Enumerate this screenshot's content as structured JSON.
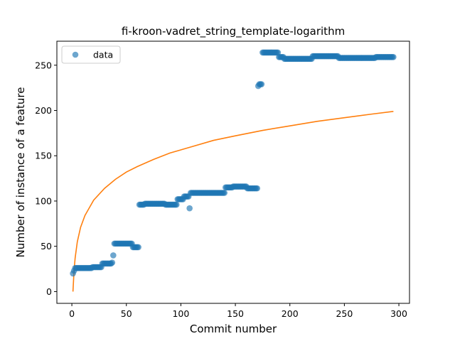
{
  "chart_data": {
    "type": "scatter",
    "title": "fi-kroon-vadret_string_template-logarithm",
    "xlabel": "Commit number",
    "ylabel": "Number of instance of a feature",
    "xlim": [
      -13.75,
      309.75
    ],
    "ylim": [
      -13,
      276.5
    ],
    "xticks": [
      0,
      50,
      100,
      150,
      200,
      250,
      300
    ],
    "yticks": [
      0,
      50,
      100,
      150,
      200,
      250
    ],
    "grid": false,
    "legend": {
      "placement": "top-left",
      "entries": [
        "data"
      ]
    },
    "colors": {
      "data": "#1f77b4",
      "fit": "#ff7f0e"
    },
    "series": [
      {
        "name": "data",
        "kind": "scatter",
        "segments": [
          {
            "from": 1,
            "to": 1,
            "y": 20
          },
          {
            "from": 2,
            "to": 2,
            "y": 23
          },
          {
            "from": 3,
            "to": 18,
            "y": 26
          },
          {
            "from": 19,
            "to": 27,
            "y": 27
          },
          {
            "from": 28,
            "to": 36,
            "y": 31
          },
          {
            "from": 37,
            "to": 37,
            "y": 32
          },
          {
            "from": 38,
            "to": 38,
            "y": 40
          },
          {
            "from": 39,
            "to": 55,
            "y": 53
          },
          {
            "from": 56,
            "to": 61,
            "y": 49
          },
          {
            "from": 62,
            "to": 66,
            "y": 96
          },
          {
            "from": 67,
            "to": 85,
            "y": 97
          },
          {
            "from": 86,
            "to": 96,
            "y": 96
          },
          {
            "from": 97,
            "to": 102,
            "y": 102
          },
          {
            "from": 103,
            "to": 107,
            "y": 105
          },
          {
            "from": 108,
            "to": 108,
            "y": 92
          },
          {
            "from": 109,
            "to": 140,
            "y": 109
          },
          {
            "from": 141,
            "to": 147,
            "y": 115
          },
          {
            "from": 148,
            "to": 160,
            "y": 116
          },
          {
            "from": 161,
            "to": 170,
            "y": 114
          },
          {
            "from": 171,
            "to": 171,
            "y": 227
          },
          {
            "from": 172,
            "to": 174,
            "y": 229
          },
          {
            "from": 175,
            "to": 189,
            "y": 264
          },
          {
            "from": 190,
            "to": 194,
            "y": 259
          },
          {
            "from": 195,
            "to": 220,
            "y": 257
          },
          {
            "from": 221,
            "to": 244,
            "y": 260
          },
          {
            "from": 245,
            "to": 278,
            "y": 258
          },
          {
            "from": 279,
            "to": 295,
            "y": 259
          }
        ]
      },
      {
        "name": "",
        "kind": "line",
        "function": "logarithmic fit",
        "points": [
          [
            1,
            0
          ],
          [
            2,
            23
          ],
          [
            3,
            37
          ],
          [
            5,
            55
          ],
          [
            8,
            71
          ],
          [
            12,
            84
          ],
          [
            20,
            101
          ],
          [
            30,
            114
          ],
          [
            40,
            124
          ],
          [
            50,
            132
          ],
          [
            60,
            138
          ],
          [
            75,
            146
          ],
          [
            90,
            153
          ],
          [
            110,
            160
          ],
          [
            130,
            167
          ],
          [
            150,
            172
          ],
          [
            175,
            178
          ],
          [
            200,
            183
          ],
          [
            225,
            188
          ],
          [
            250,
            192
          ],
          [
            275,
            196
          ],
          [
            295,
            199
          ]
        ]
      }
    ]
  }
}
